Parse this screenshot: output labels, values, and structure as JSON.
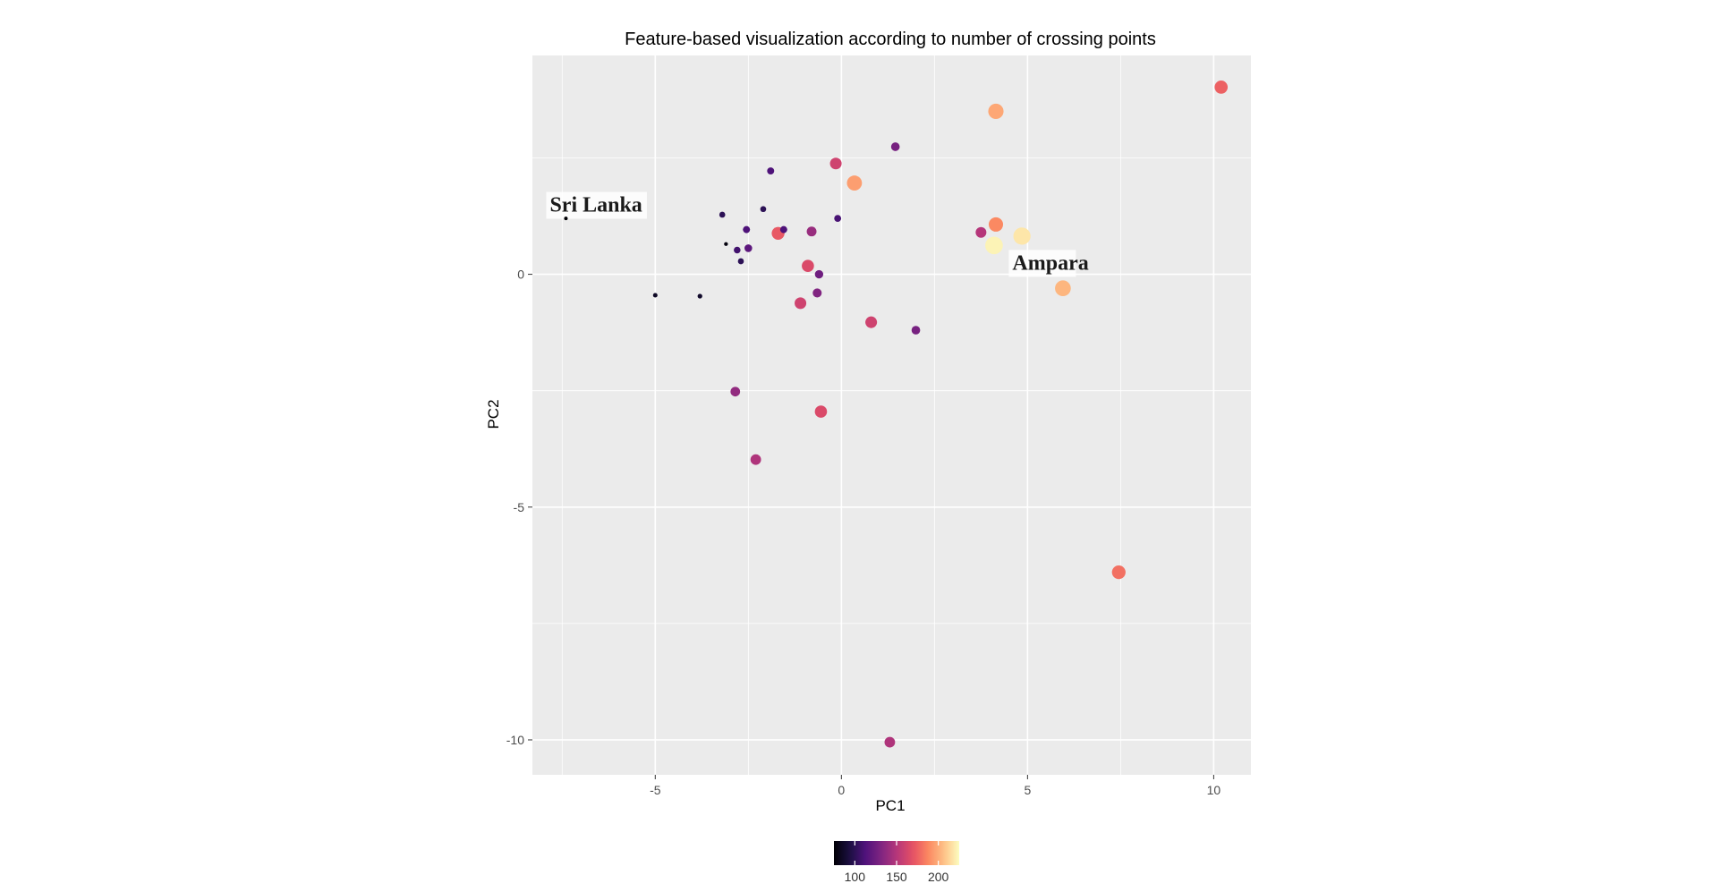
{
  "chart_data": {
    "type": "scatter",
    "title": "Feature-based visualization according to number of crossing points",
    "xlabel": "PC1",
    "ylabel": "PC2",
    "xlim": [
      -8.3,
      11.0
    ],
    "ylim": [
      -10.75,
      4.7
    ],
    "x_ticks": [
      -5,
      0,
      5,
      10
    ],
    "y_ticks": [
      0,
      -5,
      -10
    ],
    "x_tick_labels": [
      "-5",
      "0",
      "5",
      "10"
    ],
    "y_tick_labels": [
      "0",
      "-5",
      "-10"
    ],
    "grid": true,
    "panel_background": "#EBEBEB",
    "legend": {
      "position": "bottom",
      "type": "colorbar",
      "palette": "magma",
      "min": 75,
      "max": 225,
      "breaks": [
        100,
        150,
        200
      ],
      "break_labels": [
        "100",
        "150",
        "200"
      ]
    },
    "annotations": [
      {
        "text": "Sri Lanka",
        "x": -7.4,
        "y": 1.5
      },
      {
        "text": "Ampara",
        "x": 4.4,
        "y": 0.1
      }
    ],
    "points": [
      {
        "x": -7.4,
        "y": 1.2,
        "value": 75
      },
      {
        "x": -5.0,
        "y": -0.45,
        "value": 85
      },
      {
        "x": -3.8,
        "y": -0.47,
        "value": 87
      },
      {
        "x": -3.2,
        "y": 1.28,
        "value": 100
      },
      {
        "x": -3.1,
        "y": 0.65,
        "value": 78
      },
      {
        "x": -2.8,
        "y": 0.52,
        "value": 108
      },
      {
        "x": -2.7,
        "y": 0.28,
        "value": 100
      },
      {
        "x": -2.55,
        "y": 0.96,
        "value": 112
      },
      {
        "x": -2.5,
        "y": 0.56,
        "value": 118
      },
      {
        "x": -2.1,
        "y": 1.4,
        "value": 100
      },
      {
        "x": -1.9,
        "y": 2.22,
        "value": 112
      },
      {
        "x": -1.7,
        "y": 0.88,
        "value": 172
      },
      {
        "x": -1.55,
        "y": 0.96,
        "value": 112
      },
      {
        "x": -2.85,
        "y": -2.52,
        "value": 138
      },
      {
        "x": -2.3,
        "y": -3.98,
        "value": 148
      },
      {
        "x": -1.1,
        "y": -0.62,
        "value": 160
      },
      {
        "x": -0.9,
        "y": 0.18,
        "value": 165
      },
      {
        "x": -0.8,
        "y": 0.92,
        "value": 140
      },
      {
        "x": -0.65,
        "y": -0.4,
        "value": 132
      },
      {
        "x": -0.6,
        "y": 0.0,
        "value": 125
      },
      {
        "x": -0.55,
        "y": -2.95,
        "value": 165
      },
      {
        "x": -0.15,
        "y": 2.38,
        "value": 160
      },
      {
        "x": -0.1,
        "y": 1.2,
        "value": 110
      },
      {
        "x": 0.35,
        "y": 1.96,
        "value": 195
      },
      {
        "x": 0.8,
        "y": -1.03,
        "value": 160
      },
      {
        "x": 1.45,
        "y": 2.74,
        "value": 128
      },
      {
        "x": 2.0,
        "y": -1.2,
        "value": 128
      },
      {
        "x": 1.3,
        "y": -10.05,
        "value": 148
      },
      {
        "x": 3.75,
        "y": 0.9,
        "value": 150
      },
      {
        "x": 4.1,
        "y": 0.62,
        "value": 222
      },
      {
        "x": 4.15,
        "y": 1.07,
        "value": 188
      },
      {
        "x": 4.85,
        "y": 0.82,
        "value": 218
      },
      {
        "x": 4.15,
        "y": 3.5,
        "value": 198
      },
      {
        "x": 5.95,
        "y": -0.3,
        "value": 203
      },
      {
        "x": 7.45,
        "y": -6.4,
        "value": 180
      },
      {
        "x": 10.2,
        "y": 4.02,
        "value": 175
      }
    ]
  }
}
